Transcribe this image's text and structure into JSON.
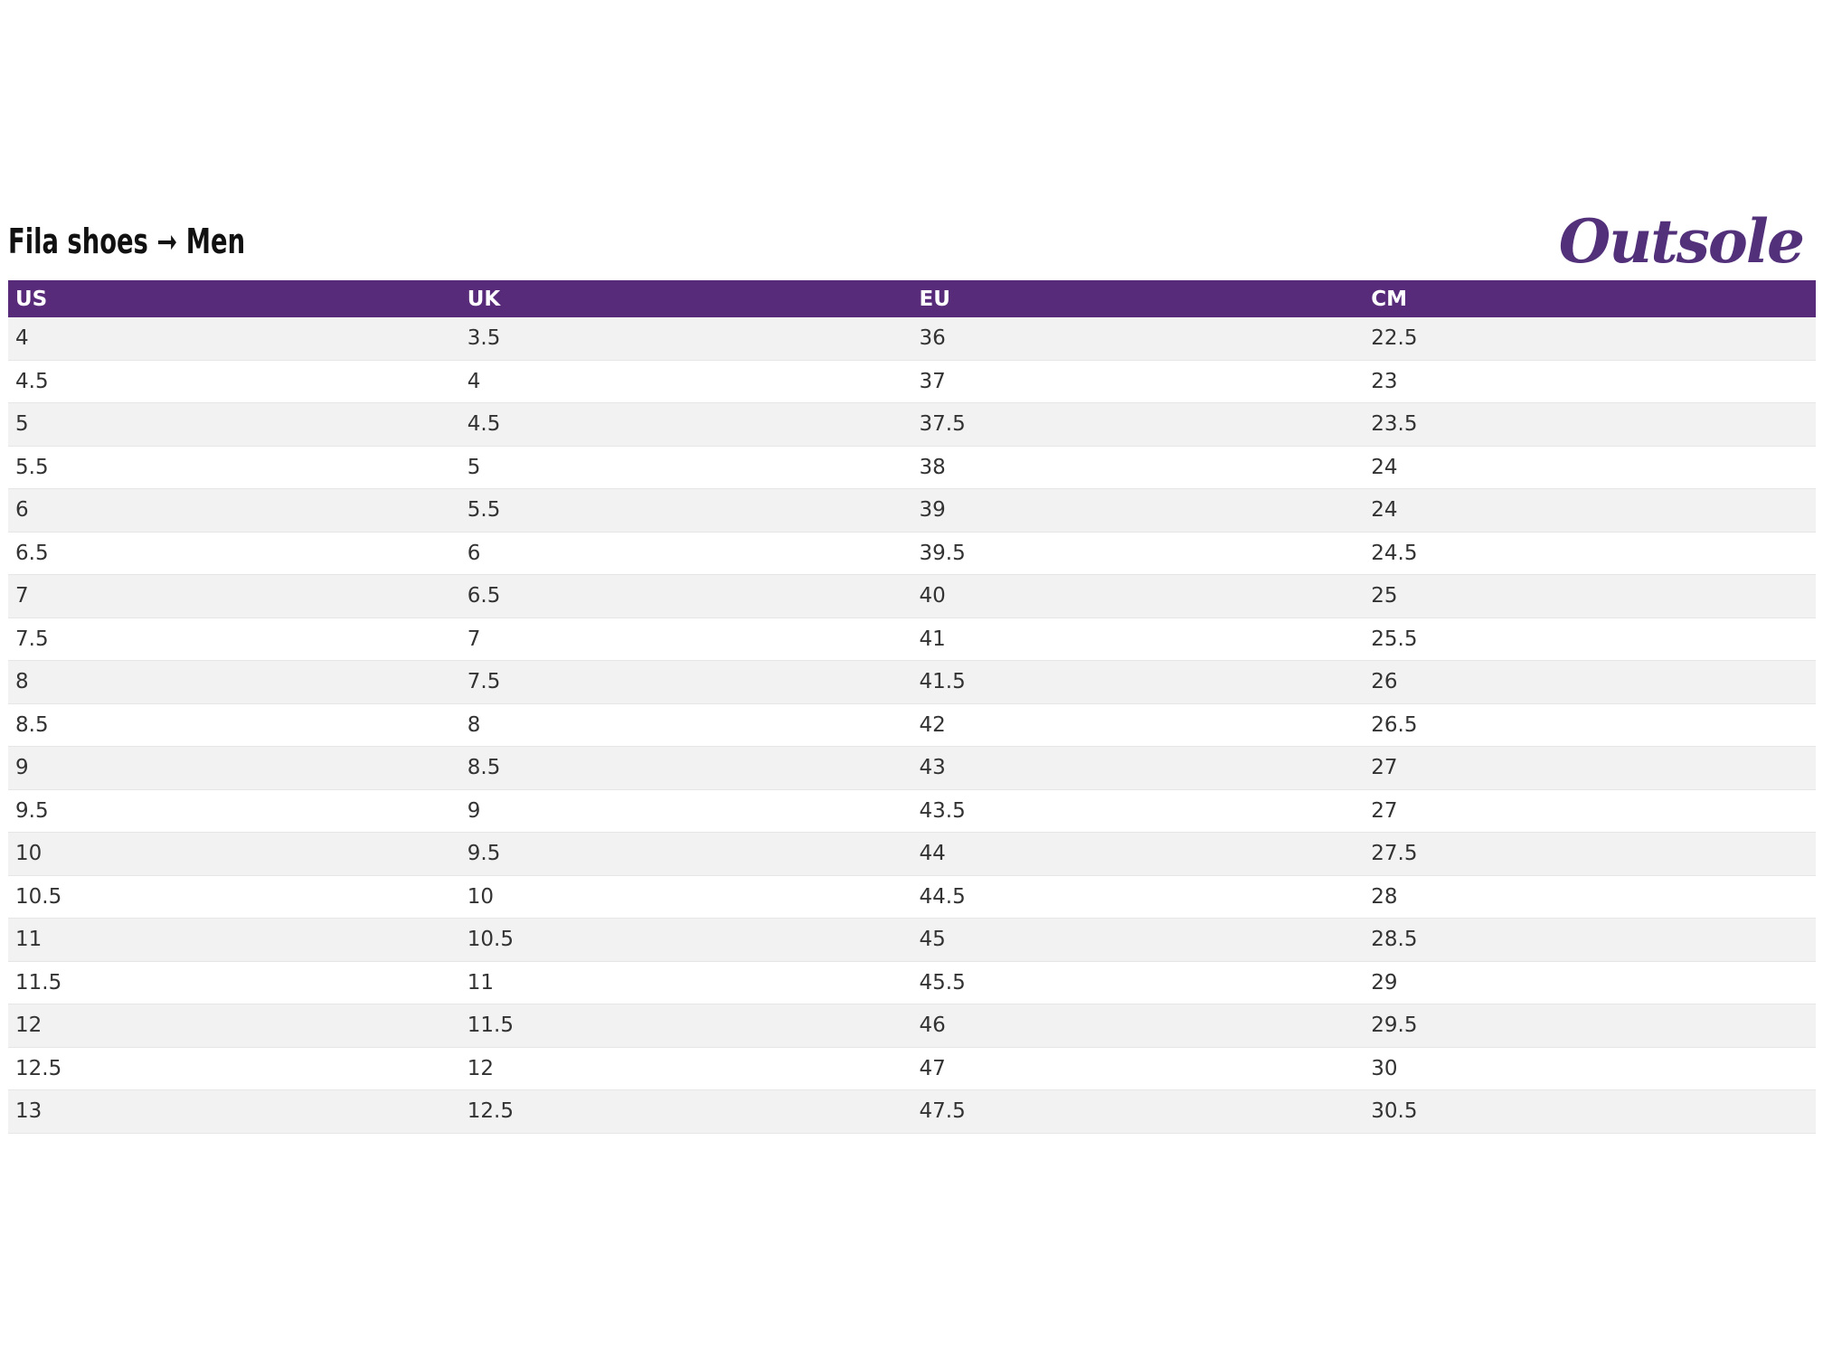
{
  "header": {
    "title": "Fila shoes ➞ Men",
    "logo": "Outsole"
  },
  "table": {
    "columns": [
      "US",
      "UK",
      "EU",
      "CM"
    ],
    "rows": [
      [
        "4",
        "3.5",
        "36",
        "22.5"
      ],
      [
        "4.5",
        "4",
        "37",
        "23"
      ],
      [
        "5",
        "4.5",
        "37.5",
        "23.5"
      ],
      [
        "5.5",
        "5",
        "38",
        "24"
      ],
      [
        "6",
        "5.5",
        "39",
        "24"
      ],
      [
        "6.5",
        "6",
        "39.5",
        "24.5"
      ],
      [
        "7",
        "6.5",
        "40",
        "25"
      ],
      [
        "7.5",
        "7",
        "41",
        "25.5"
      ],
      [
        "8",
        "7.5",
        "41.5",
        "26"
      ],
      [
        "8.5",
        "8",
        "42",
        "26.5"
      ],
      [
        "9",
        "8.5",
        "43",
        "27"
      ],
      [
        "9.5",
        "9",
        "43.5",
        "27"
      ],
      [
        "10",
        "9.5",
        "44",
        "27.5"
      ],
      [
        "10.5",
        "10",
        "44.5",
        "28"
      ],
      [
        "11",
        "10.5",
        "45",
        "28.5"
      ],
      [
        "11.5",
        "11",
        "45.5",
        "29"
      ],
      [
        "12",
        "11.5",
        "46",
        "29.5"
      ],
      [
        "12.5",
        "12",
        "47",
        "30"
      ],
      [
        "13",
        "12.5",
        "47.5",
        "30.5"
      ]
    ]
  }
}
